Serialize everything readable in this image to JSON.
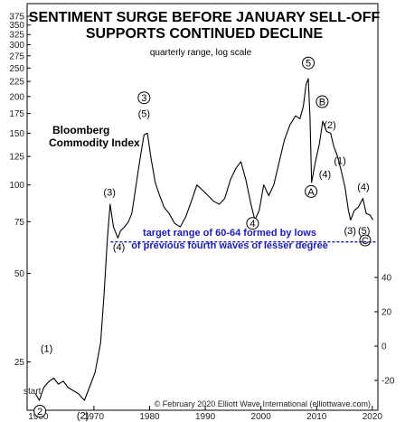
{
  "chart_data": {
    "type": "line",
    "title_line1": "SENTIMENT SURGE BEFORE JANUARY SELL-OFF",
    "title_line2": "SUPPORTS CONTINUED DECLINE",
    "subtitle": "quarterly range, log scale",
    "series_label_line1": "Bloomberg",
    "series_label_line2": "Commodity Index",
    "yscale": "log",
    "ylim": [
      20,
      375
    ],
    "xlim": [
      1958,
      2021
    ],
    "left_ticks": [
      "375",
      "350",
      "325",
      "300",
      "275",
      "250",
      "225",
      "200",
      "175",
      "150",
      "125",
      "100",
      "75",
      "50",
      "25"
    ],
    "right_ticks": [
      "40",
      "20",
      "0",
      "-20"
    ],
    "x_ticks": [
      "1960",
      "1970",
      "1980",
      "1990",
      "2000",
      "2010",
      "2020"
    ],
    "series": [
      {
        "color": "#000000",
        "points": [
          [
            1959.5,
            19.5
          ],
          [
            1960.2,
            18.5
          ],
          [
            1961,
            20.5
          ],
          [
            1962,
            21.5
          ],
          [
            1962.8,
            22
          ],
          [
            1963.6,
            21
          ],
          [
            1964.5,
            21.5
          ],
          [
            1965.3,
            20.5
          ],
          [
            1966.2,
            20
          ],
          [
            1967.2,
            19.5
          ],
          [
            1968.3,
            18.5
          ],
          [
            1969.2,
            20.5
          ],
          [
            1970.2,
            23
          ],
          [
            1971.2,
            29
          ],
          [
            1971.8,
            42
          ],
          [
            1972.4,
            65
          ],
          [
            1972.9,
            86
          ],
          [
            1973.5,
            72
          ],
          [
            1974.3,
            66
          ],
          [
            1974.8,
            70
          ],
          [
            1975.5,
            72
          ],
          [
            1976.2,
            75
          ],
          [
            1976.8,
            80
          ],
          [
            1977.4,
            95
          ],
          [
            1978.2,
            120
          ],
          [
            1979,
            148
          ],
          [
            1979.6,
            150
          ],
          [
            1980.3,
            122
          ],
          [
            1981,
            102
          ],
          [
            1981.8,
            92
          ],
          [
            1982.6,
            84
          ],
          [
            1983.5,
            80
          ],
          [
            1984.5,
            74
          ],
          [
            1985.5,
            72
          ],
          [
            1986.5,
            78
          ],
          [
            1987.5,
            88
          ],
          [
            1988.5,
            100
          ],
          [
            1989.5,
            96
          ],
          [
            1990.5,
            92
          ],
          [
            1991.5,
            88
          ],
          [
            1992.5,
            86
          ],
          [
            1993.5,
            90
          ],
          [
            1994.5,
            104
          ],
          [
            1995.5,
            114
          ],
          [
            1996.4,
            120
          ],
          [
            1997.3,
            104
          ],
          [
            1998.2,
            86
          ],
          [
            1998.9,
            76
          ],
          [
            1999.7,
            82
          ],
          [
            2000.5,
            100
          ],
          [
            2001.4,
            92
          ],
          [
            2002.3,
            100
          ],
          [
            2003.2,
            118
          ],
          [
            2004.2,
            142
          ],
          [
            2005.2,
            160
          ],
          [
            2006.2,
            172
          ],
          [
            2007,
            168
          ],
          [
            2007.6,
            185
          ],
          [
            2008.1,
            220
          ],
          [
            2008.5,
            230
          ],
          [
            2008.8,
            170
          ],
          [
            2009.1,
            102
          ],
          [
            2009.7,
            118
          ],
          [
            2010.5,
            138
          ],
          [
            2011.1,
            165
          ],
          [
            2011.8,
            152
          ],
          [
            2012.5,
            150
          ],
          [
            2013.1,
            135
          ],
          [
            2013.7,
            126
          ],
          [
            2014.4,
            112
          ],
          [
            2015.1,
            98
          ],
          [
            2015.7,
            82
          ],
          [
            2016.1,
            76
          ],
          [
            2016.8,
            82
          ],
          [
            2017.5,
            84
          ],
          [
            2018.3,
            90
          ],
          [
            2018.9,
            80
          ],
          [
            2019.6,
            79
          ],
          [
            2020.1,
            76
          ]
        ]
      }
    ],
    "target_line": {
      "value": 64,
      "x_start": 1973,
      "x_end": 2021,
      "color": "#1a1ab8"
    },
    "wave_labels": [
      {
        "text": "(1)",
        "x": 1961.5,
        "y": 27
      },
      {
        "text": "(2)",
        "x": 1968,
        "y": 16
      },
      {
        "text": "(3)",
        "x": 1972.8,
        "y": 92
      },
      {
        "text": "(4)",
        "x": 1974.5,
        "y": 60
      },
      {
        "text": "(5)",
        "x": 1979,
        "y": 170
      },
      {
        "text": "(4)",
        "x": 2011.5,
        "y": 106
      },
      {
        "text": "(3)",
        "x": 2016,
        "y": 68
      },
      {
        "text": "(4)",
        "x": 2018.4,
        "y": 96
      },
      {
        "text": "(2)",
        "x": 2012.4,
        "y": 156
      },
      {
        "text": "(1)",
        "x": 2014.2,
        "y": 118
      }
    ],
    "circled_labels": [
      {
        "text": "2",
        "x": 1960.3,
        "y": 17
      },
      {
        "text": "3",
        "x": 1979,
        "y": 198
      },
      {
        "text": "4",
        "x": 1998.5,
        "y": 74
      },
      {
        "text": "5",
        "x": 2008.5,
        "y": 260
      },
      {
        "text": "A",
        "x": 2009,
        "y": 95
      },
      {
        "text": "B",
        "x": 2011,
        "y": 192
      }
    ],
    "end_labels": [
      {
        "text": "(5)",
        "circle": "C"
      }
    ],
    "start_label": "start",
    "annotation_line1": "target range of 60-64 formed by lows",
    "annotation_line2": "of previous fourth waves of lesser degree",
    "copyright": "© February 2020 Elliott Wave International (elliottwave.com)"
  }
}
